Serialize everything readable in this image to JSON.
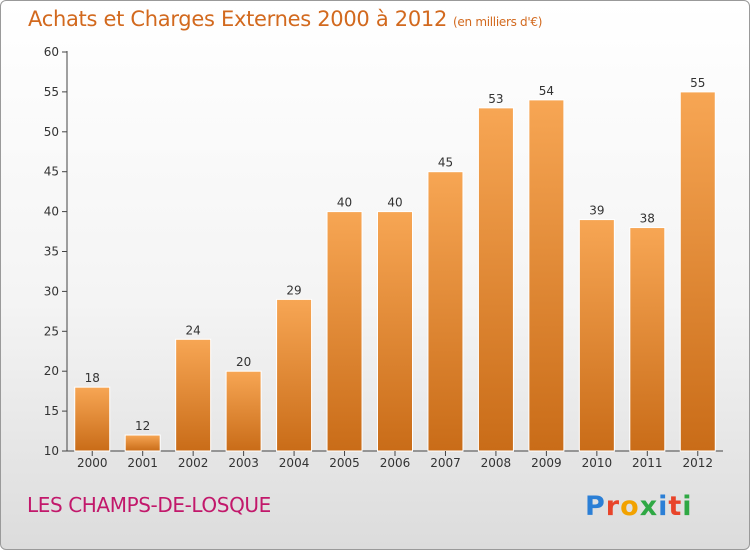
{
  "chart_data": {
    "type": "bar",
    "title": "Achats et Charges Externes 2000 à 2012",
    "unit_note": "(en milliers d'€)",
    "categories": [
      "2000",
      "2001",
      "2002",
      "2003",
      "2004",
      "2005",
      "2006",
      "2007",
      "2008",
      "2009",
      "2010",
      "2011",
      "2012"
    ],
    "values": [
      18,
      12,
      24,
      20,
      29,
      40,
      40,
      45,
      53,
      54,
      39,
      38,
      55
    ],
    "ylim": [
      10,
      60
    ],
    "yticks": [
      10,
      15,
      20,
      25,
      30,
      35,
      40,
      45,
      50,
      55,
      60
    ],
    "grid": false,
    "bar_color_top": "#f7a654",
    "bar_color_bottom": "#c96c18"
  },
  "footer": {
    "location": "LES CHAMPS-DE-LOSQUE",
    "logo_text": "Proxiti"
  },
  "colors": {
    "title": "#d2691e",
    "location": "#c2186b",
    "axis": "#333333"
  }
}
